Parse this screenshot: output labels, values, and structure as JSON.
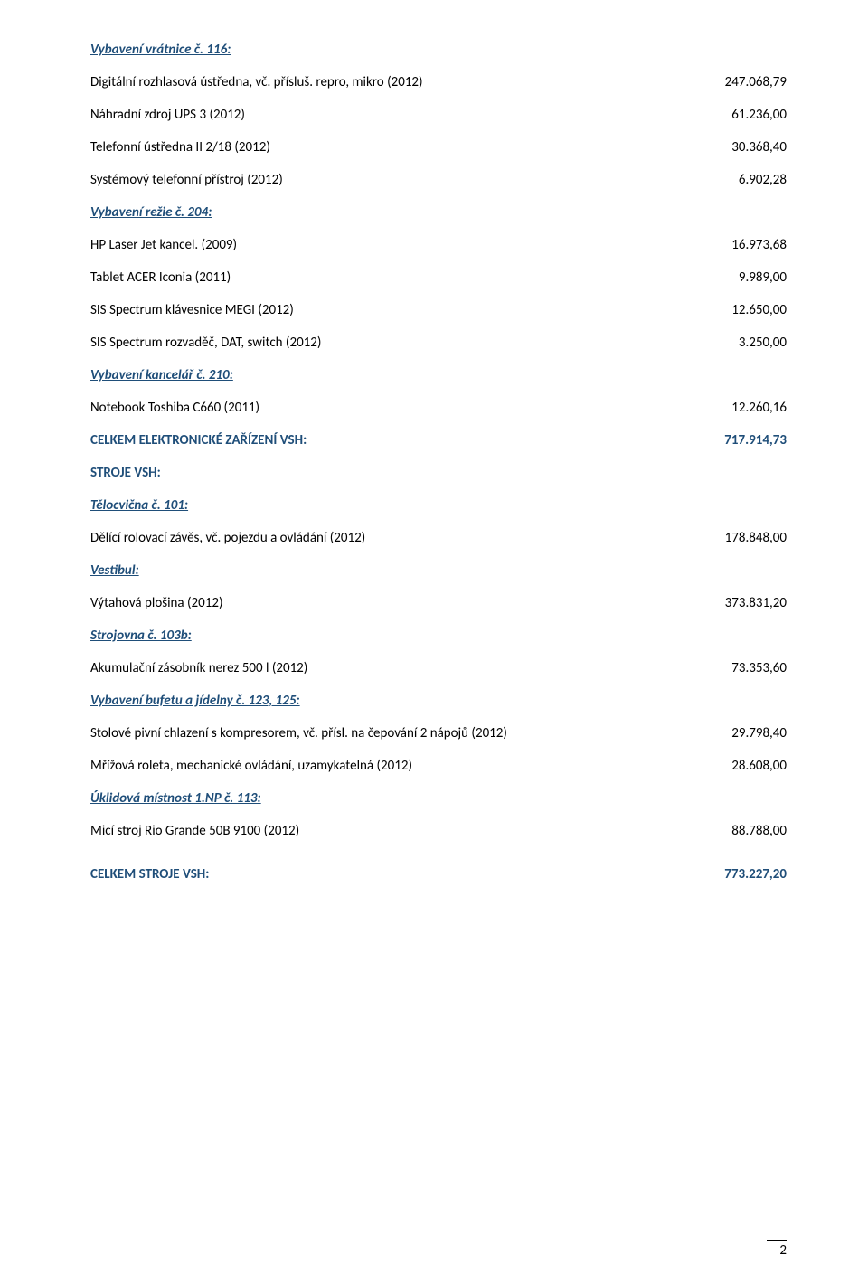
{
  "colors": {
    "accent": "#1f4e79",
    "text": "#000000",
    "bg": "#ffffff"
  },
  "sections": {
    "s1": {
      "heading": "Vybavení vrátnice č. 116:"
    },
    "s2": {
      "heading": "Vybavení režie č. 204:"
    },
    "s3": {
      "heading": "Vybavení kancelář č. 210:"
    },
    "s4": {
      "heading": "Tělocvična č. 101:"
    },
    "s5": {
      "heading": "Vestibul:"
    },
    "s6": {
      "heading": "Strojovna č. 103b:"
    },
    "s7": {
      "heading": "Vybavení bufetu a jídelny č. 123, 125:"
    },
    "s8": {
      "heading": "Úklidová místnost 1.NP č. 113:"
    }
  },
  "rows": {
    "r1": {
      "label": "Digitální rozhlasová ústředna, vč. přísluš. repro, mikro (2012)",
      "value": "247.068,79"
    },
    "r2": {
      "label": "Náhradní zdroj UPS 3 (2012)",
      "value": "61.236,00"
    },
    "r3": {
      "label": "Telefonní ústředna II 2/18 (2012)",
      "value": "30.368,40"
    },
    "r4": {
      "label": "Systémový telefonní přístroj (2012)",
      "value": "6.902,28"
    },
    "r5": {
      "label": "HP Laser Jet kancel. (2009)",
      "value": "16.973,68"
    },
    "r6": {
      "label": "Tablet ACER Iconia (2011)",
      "value": "9.989,00"
    },
    "r7": {
      "label": "SIS Spectrum klávesnice MEGI (2012)",
      "value": "12.650,00"
    },
    "r8": {
      "label": "SIS Spectrum rozvaděč, DAT, switch (2012)",
      "value": "3.250,00"
    },
    "r9": {
      "label": "Notebook Toshiba C660 (2011)",
      "value": "12.260,16"
    },
    "r10": {
      "label": "Dělící rolovací závěs, vč. pojezdu a ovládání (2012)",
      "value": "178.848,00"
    },
    "r11": {
      "label": "Výtahová plošina (2012)",
      "value": "373.831,20"
    },
    "r12": {
      "label": "Akumulační zásobník nerez 500 l (2012)",
      "value": "73.353,60"
    },
    "r13": {
      "label": "Stolové pivní chlazení s kompresorem, vč. přísl. na čepování 2 nápojů (2012)",
      "value": "29.798,40"
    },
    "r14": {
      "label": "Mřížová roleta, mechanické ovládání, uzamykatelná (2012)",
      "value": "28.608,00"
    },
    "r15": {
      "label": "Micí stroj Rio Grande 50B 9100 (2012)",
      "value": "88.788,00"
    }
  },
  "totals": {
    "t1": {
      "label": "CELKEM ELEKTRONICKÉ ZAŘÍZENÍ VSH:",
      "value": "717.914,73"
    },
    "t2": {
      "label": "CELKEM STROJE VSH:",
      "value": "773.227,20"
    }
  },
  "stroje_heading": "STROJE VSH:",
  "page_number": "2"
}
